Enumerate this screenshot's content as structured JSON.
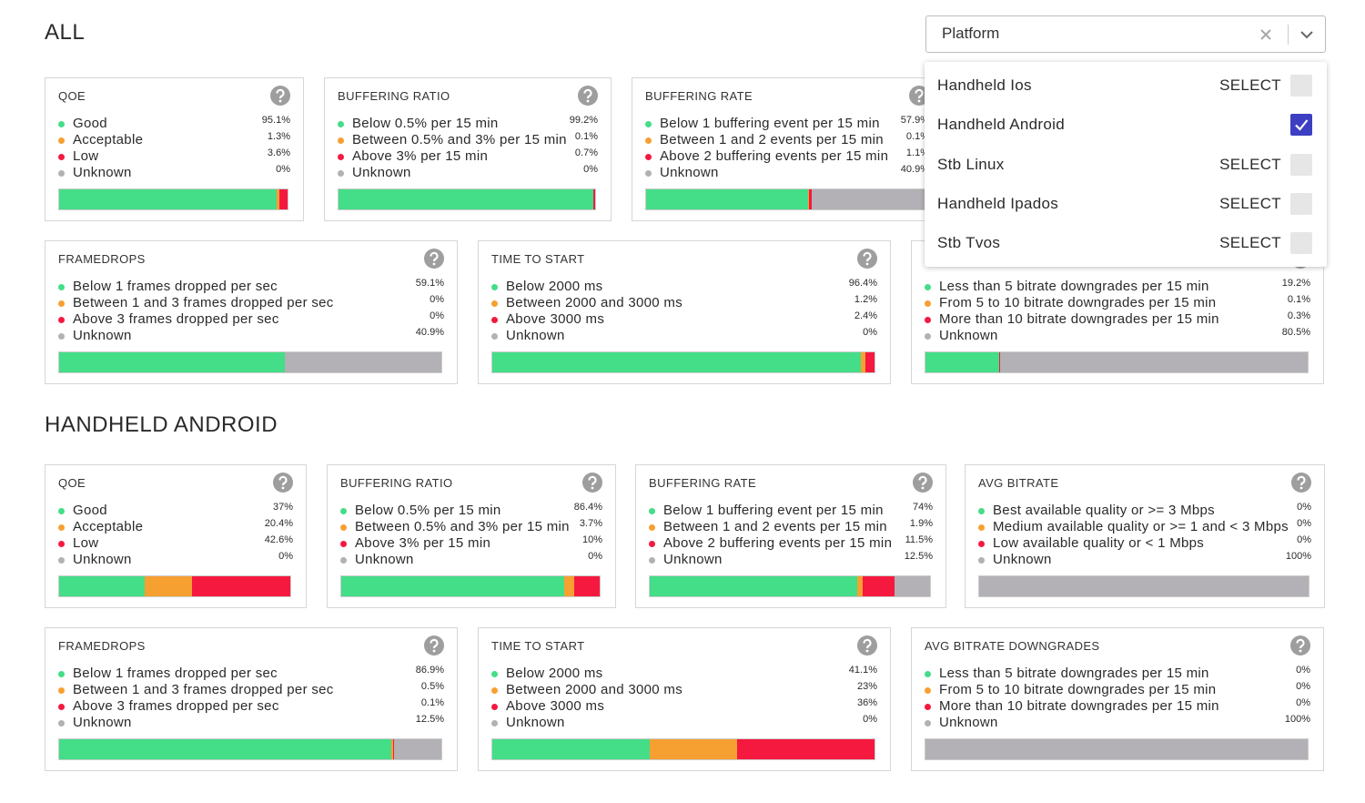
{
  "status_colors": [
    "#44dd88",
    "#f7a032",
    "#f5193f",
    "#b3b1b5"
  ],
  "dropdown": {
    "placeholder": "Platform",
    "options": [
      {
        "label": "Handheld Ios",
        "action": "SELECT",
        "checked": false
      },
      {
        "label": "Handheld Android",
        "checked": true
      },
      {
        "label": "Stb Linux",
        "action": "SELECT",
        "checked": false
      },
      {
        "label": "Handheld Ipados",
        "action": "SELECT",
        "checked": false
      },
      {
        "label": "Stb Tvos",
        "action": "SELECT",
        "checked": false
      }
    ]
  },
  "sections": [
    {
      "title": "ALL",
      "cards": [
        {
          "title": "QOE",
          "rows": [
            {
              "label": "Good",
              "value": 95.1,
              "value_label": "95.1%"
            },
            {
              "label": "Acceptable",
              "value": 1.3,
              "value_label": "1.3%"
            },
            {
              "label": "Low",
              "value": 3.6,
              "value_label": "3.6%"
            },
            {
              "label": "Unknown",
              "value": 0,
              "value_label": "0%"
            }
          ]
        },
        {
          "title": "BUFFERING RATIO",
          "rows": [
            {
              "label": "Below 0.5% per 15 min",
              "value": 99.2,
              "value_label": "99.2%"
            },
            {
              "label": "Between 0.5% and 3% per 15 min",
              "value": 0.1,
              "value_label": "0.1%"
            },
            {
              "label": "Above 3% per 15 min",
              "value": 0.7,
              "value_label": "0.7%"
            },
            {
              "label": "Unknown",
              "value": 0,
              "value_label": "0%"
            }
          ]
        },
        {
          "title": "BUFFERING RATE",
          "rows": [
            {
              "label": "Below 1 buffering event per 15 min",
              "value": 57.9,
              "value_label": "57.9%"
            },
            {
              "label": "Between 1 and 2 events per 15 min",
              "value": 0.1,
              "value_label": "0.1%"
            },
            {
              "label": "Above 2 buffering events per 15 min",
              "value": 1.1,
              "value_label": "1.1%"
            },
            {
              "label": "Unknown",
              "value": 40.9,
              "value_label": "40.9%"
            }
          ]
        },
        {
          "title": "FRAMEDROPS",
          "rows": [
            {
              "label": "Below 1 frames dropped per sec",
              "value": 59.1,
              "value_label": "59.1%"
            },
            {
              "label": "Between 1 and 3 frames dropped per sec",
              "value": 0,
              "value_label": "0%"
            },
            {
              "label": "Above 3 frames dropped per sec",
              "value": 0,
              "value_label": "0%"
            },
            {
              "label": "Unknown",
              "value": 40.9,
              "value_label": "40.9%"
            }
          ]
        },
        {
          "title": "TIME TO START",
          "rows": [
            {
              "label": "Below 2000 ms",
              "value": 96.4,
              "value_label": "96.4%"
            },
            {
              "label": "Between 2000 and 3000 ms",
              "value": 1.2,
              "value_label": "1.2%"
            },
            {
              "label": "Above 3000 ms",
              "value": 2.4,
              "value_label": "2.4%"
            },
            {
              "label": "Unknown",
              "value": 0,
              "value_label": "0%"
            }
          ]
        },
        {
          "rows": [
            {
              "label": "Less than 5 bitrate downgrades per 15 min",
              "value": 19.2,
              "value_label": "19.2%"
            },
            {
              "label": "From 5 to 10 bitrate downgrades per 15 min",
              "value": 0.1,
              "value_label": "0.1%"
            },
            {
              "label": "More than 10 bitrate downgrades per 15 min",
              "value": 0.3,
              "value_label": "0.3%"
            },
            {
              "label": "Unknown",
              "value": 80.5,
              "value_label": "80.5%"
            }
          ]
        }
      ]
    },
    {
      "title": "HANDHELD ANDROID",
      "cards": [
        {
          "title": "QOE",
          "rows": [
            {
              "label": "Good",
              "value": 37,
              "value_label": "37%"
            },
            {
              "label": "Acceptable",
              "value": 20.4,
              "value_label": "20.4%"
            },
            {
              "label": "Low",
              "value": 42.6,
              "value_label": "42.6%"
            },
            {
              "label": "Unknown",
              "value": 0,
              "value_label": "0%"
            }
          ]
        },
        {
          "title": "BUFFERING RATIO",
          "rows": [
            {
              "label": "Below 0.5% per 15 min",
              "value": 86.4,
              "value_label": "86.4%"
            },
            {
              "label": "Between 0.5% and 3% per 15 min",
              "value": 3.7,
              "value_label": "3.7%"
            },
            {
              "label": "Above 3% per 15 min",
              "value": 10,
              "value_label": "10%"
            },
            {
              "label": "Unknown",
              "value": 0,
              "value_label": "0%"
            }
          ]
        },
        {
          "title": "BUFFERING RATE",
          "rows": [
            {
              "label": "Below 1 buffering event per 15 min",
              "value": 74,
              "value_label": "74%"
            },
            {
              "label": "Between 1 and 2 events per 15 min",
              "value": 1.9,
              "value_label": "1.9%"
            },
            {
              "label": "Above 2 buffering events per 15 min",
              "value": 11.5,
              "value_label": "11.5%"
            },
            {
              "label": "Unknown",
              "value": 12.5,
              "value_label": "12.5%"
            }
          ]
        },
        {
          "title": "AVG BITRATE",
          "rows": [
            {
              "label": "Best available quality or >= 3 Mbps",
              "value": 0,
              "value_label": "0%"
            },
            {
              "label": "Medium available quality or >= 1 and < 3 Mbps",
              "value": 0,
              "value_label": "0%"
            },
            {
              "label": "Low available quality or < 1 Mbps",
              "value": 0,
              "value_label": "0%"
            },
            {
              "label": "Unknown",
              "value": 100,
              "value_label": "100%"
            }
          ]
        },
        {
          "title": "FRAMEDROPS",
          "rows": [
            {
              "label": "Below 1 frames dropped per sec",
              "value": 86.9,
              "value_label": "86.9%"
            },
            {
              "label": "Between 1 and 3 frames dropped per sec",
              "value": 0.5,
              "value_label": "0.5%"
            },
            {
              "label": "Above 3 frames dropped per sec",
              "value": 0.1,
              "value_label": "0.1%"
            },
            {
              "label": "Unknown",
              "value": 12.5,
              "value_label": "12.5%"
            }
          ]
        },
        {
          "title": "TIME TO START",
          "rows": [
            {
              "label": "Below 2000 ms",
              "value": 41.1,
              "value_label": "41.1%"
            },
            {
              "label": "Between 2000 and 3000 ms",
              "value": 23,
              "value_label": "23%"
            },
            {
              "label": "Above 3000 ms",
              "value": 36,
              "value_label": "36%"
            },
            {
              "label": "Unknown",
              "value": 0,
              "value_label": "0%"
            }
          ]
        },
        {
          "title": "AVG BITRATE DOWNGRADES",
          "rows": [
            {
              "label": "Less than 5 bitrate downgrades per 15 min",
              "value": 0,
              "value_label": "0%"
            },
            {
              "label": "From 5 to 10 bitrate downgrades per 15 min",
              "value": 0,
              "value_label": "0%"
            },
            {
              "label": "More than 10 bitrate downgrades per 15 min",
              "value": 0,
              "value_label": "0%"
            },
            {
              "label": "Unknown",
              "value": 100,
              "value_label": "100%"
            }
          ]
        }
      ]
    }
  ]
}
